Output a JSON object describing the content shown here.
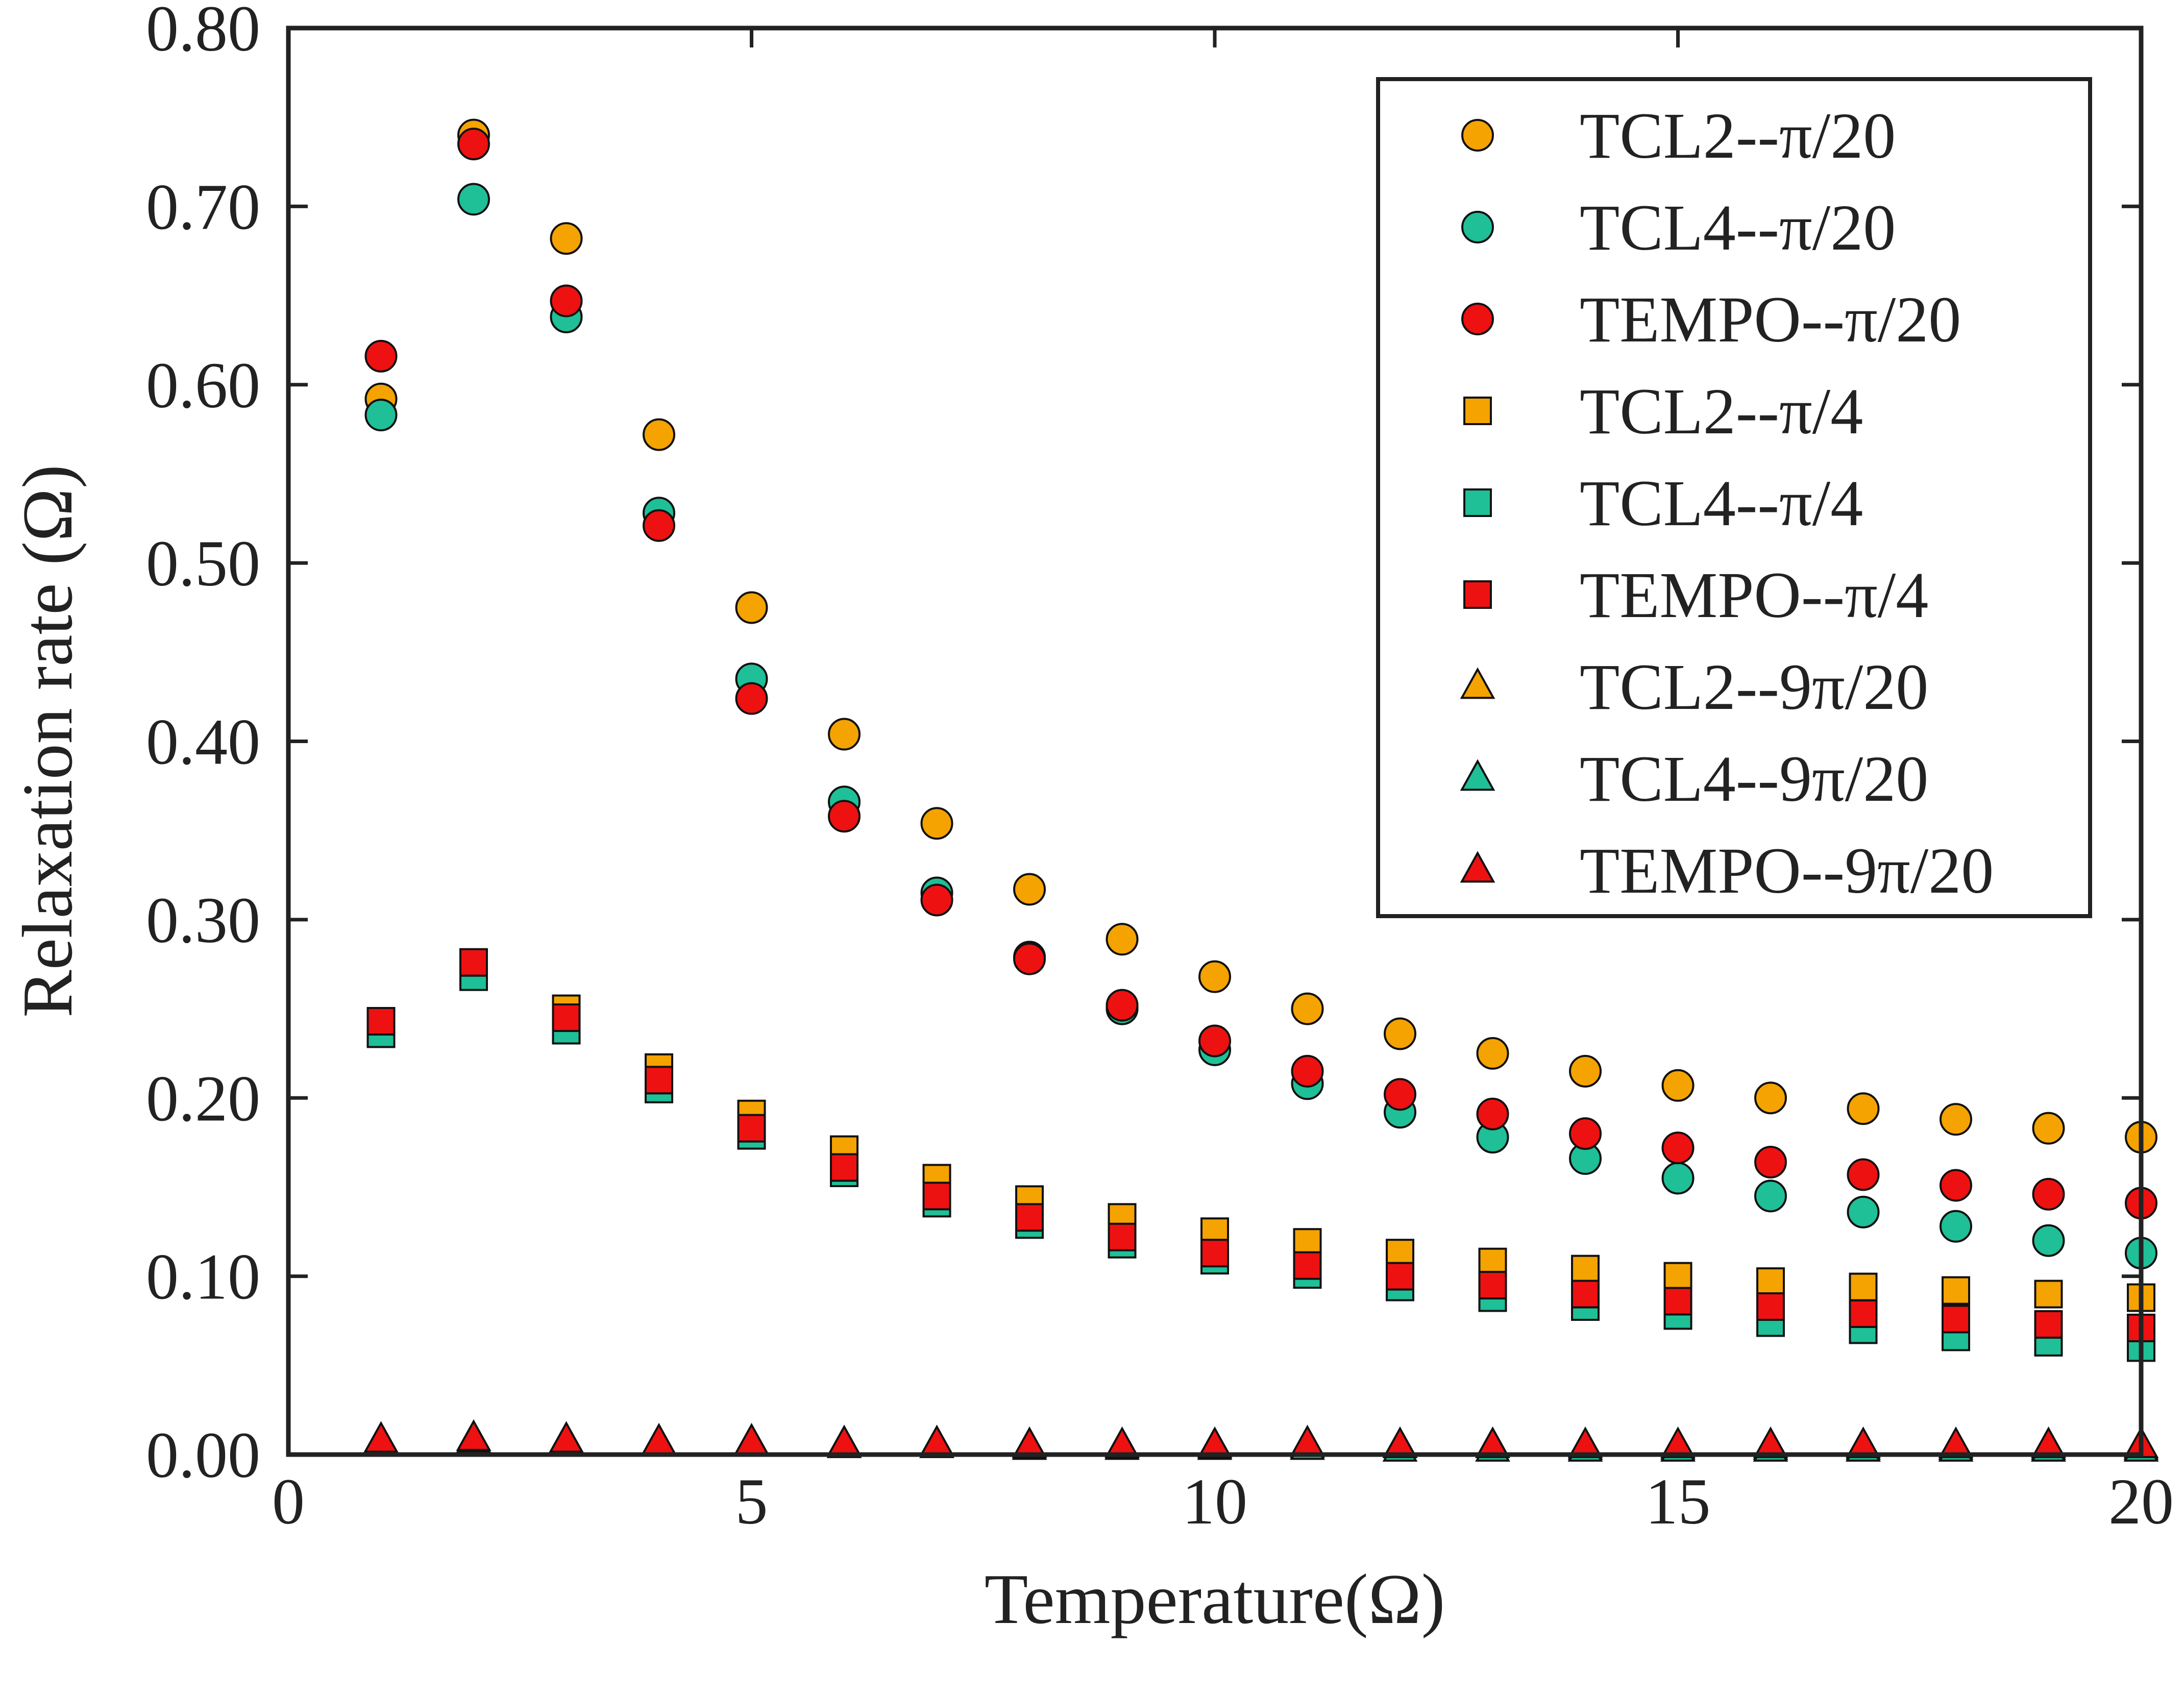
{
  "chart_data": {
    "type": "scatter",
    "title": "",
    "xlabel": "Temperature(Ω)",
    "ylabel": "Relaxation rate (Ω)",
    "xlim": [
      0,
      20
    ],
    "ylim": [
      0,
      0.8
    ],
    "xticks": [
      "0",
      "5",
      "10",
      "15",
      "20"
    ],
    "yticks": [
      "0.00",
      "0.10",
      "0.20",
      "0.30",
      "0.40",
      "0.50",
      "0.60",
      "0.70",
      "0.80"
    ],
    "grid": false,
    "legend_position": "top-right",
    "x": [
      1,
      2,
      3,
      4,
      5,
      6,
      7,
      8,
      9,
      10,
      11,
      12,
      13,
      14,
      15,
      16,
      17,
      18,
      19,
      20
    ],
    "series": [
      {
        "name": "TCL2--π/20",
        "marker": "circle",
        "color": "#f5a300",
        "values": [
          0.592,
          0.74,
          0.682,
          0.572,
          0.475,
          0.404,
          0.354,
          0.317,
          0.289,
          0.268,
          0.25,
          0.236,
          0.225,
          0.215,
          0.207,
          0.2,
          0.194,
          0.188,
          0.183,
          0.178
        ]
      },
      {
        "name": "TCL4--π/20",
        "marker": "circle",
        "color": "#1fbf97",
        "values": [
          0.583,
          0.704,
          0.638,
          0.528,
          0.435,
          0.366,
          0.315,
          0.279,
          0.25,
          0.227,
          0.208,
          0.192,
          0.178,
          0.166,
          0.155,
          0.145,
          0.136,
          0.128,
          0.12,
          0.113
        ]
      },
      {
        "name": "TEMPO--π/20",
        "marker": "circle",
        "color": "#ee1111",
        "values": [
          0.616,
          0.735,
          0.647,
          0.521,
          0.424,
          0.358,
          0.311,
          0.278,
          0.252,
          0.232,
          0.215,
          0.202,
          0.191,
          0.18,
          0.172,
          0.164,
          0.157,
          0.151,
          0.146,
          0.141
        ]
      },
      {
        "name": "TCL2--π/4",
        "marker": "square",
        "color": "#f5a300",
        "values": [
          0.243,
          0.275,
          0.25,
          0.217,
          0.191,
          0.171,
          0.155,
          0.143,
          0.133,
          0.125,
          0.119,
          0.113,
          0.108,
          0.104,
          0.1,
          0.097,
          0.094,
          0.092,
          0.09,
          0.088
        ]
      },
      {
        "name": "TCL4--π/4",
        "marker": "square",
        "color": "#1fbf97",
        "values": [
          0.236,
          0.268,
          0.238,
          0.205,
          0.179,
          0.158,
          0.141,
          0.129,
          0.118,
          0.109,
          0.101,
          0.094,
          0.088,
          0.083,
          0.078,
          0.074,
          0.07,
          0.066,
          0.063,
          0.06
        ]
      },
      {
        "name": "TEMPO--π/4",
        "marker": "square",
        "color": "#ee1111",
        "values": [
          0.243,
          0.276,
          0.245,
          0.21,
          0.183,
          0.161,
          0.145,
          0.133,
          0.122,
          0.113,
          0.106,
          0.1,
          0.095,
          0.09,
          0.086,
          0.083,
          0.079,
          0.076,
          0.073,
          0.071
        ]
      },
      {
        "name": "TCL2--9π/20",
        "marker": "triangle",
        "color": "#f5a300",
        "values": [
          0.008,
          0.009,
          0.008,
          0.007,
          0.007,
          0.006,
          0.006,
          0.005,
          0.005,
          0.005,
          0.005,
          0.005,
          0.005,
          0.004,
          0.004,
          0.004,
          0.004,
          0.004,
          0.004,
          0.004
        ]
      },
      {
        "name": "TCL4--9π/20",
        "marker": "triangle",
        "color": "#1fbf97",
        "values": [
          0.007,
          0.008,
          0.007,
          0.006,
          0.006,
          0.005,
          0.005,
          0.004,
          0.004,
          0.004,
          0.004,
          0.003,
          0.003,
          0.003,
          0.003,
          0.003,
          0.003,
          0.003,
          0.003,
          0.003
        ]
      },
      {
        "name": "TEMPO--9π/20",
        "marker": "triangle",
        "color": "#ee1111",
        "values": [
          0.008,
          0.009,
          0.008,
          0.007,
          0.007,
          0.006,
          0.006,
          0.005,
          0.005,
          0.005,
          0.006,
          0.005,
          0.005,
          0.005,
          0.005,
          0.005,
          0.005,
          0.005,
          0.005,
          0.005
        ]
      }
    ]
  }
}
